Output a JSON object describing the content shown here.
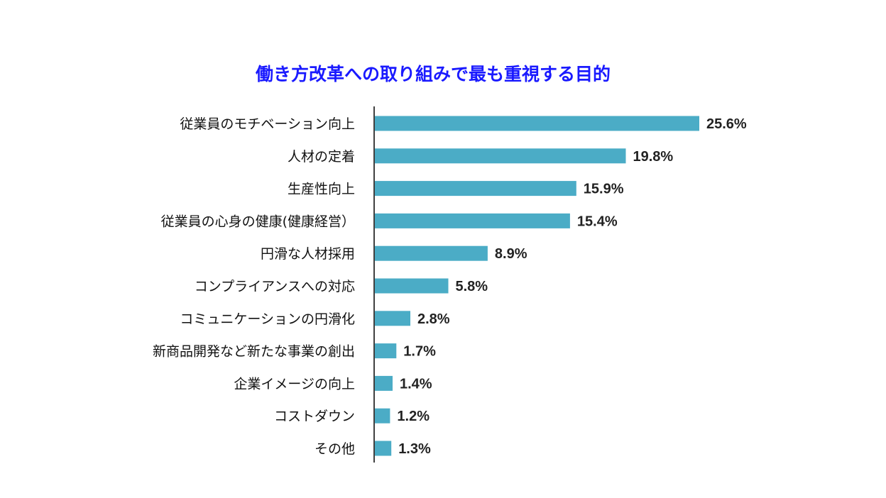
{
  "chart_data": {
    "type": "bar",
    "orientation": "horizontal",
    "title": "働き方改革への取り組みで最も重視する目的",
    "xlabel": "",
    "ylabel": "",
    "xlim": [
      0,
      30
    ],
    "grid": false,
    "legend": "none",
    "bar_color": "#4bacc6",
    "title_color": "#1a1aff",
    "categories": [
      "従業員のモチベーション向上",
      "人材の定着",
      "生産性向上",
      "従業員の心身の健康(健康経営）",
      "円滑な人材採用",
      "コンプライアンスへの対応",
      "コミュニケーションの円滑化",
      "新商品開発など新たな事業の創出",
      "企業イメージの向上",
      "コストダウン",
      "その他"
    ],
    "values": [
      25.6,
      19.8,
      15.9,
      15.4,
      8.9,
      5.8,
      2.8,
      1.7,
      1.4,
      1.2,
      1.3
    ],
    "value_labels": [
      "25.6%",
      "19.8%",
      "15.9%",
      "15.4%",
      "8.9%",
      "5.8%",
      "2.8%",
      "1.7%",
      "1.4%",
      "1.2%",
      "1.3%"
    ]
  }
}
